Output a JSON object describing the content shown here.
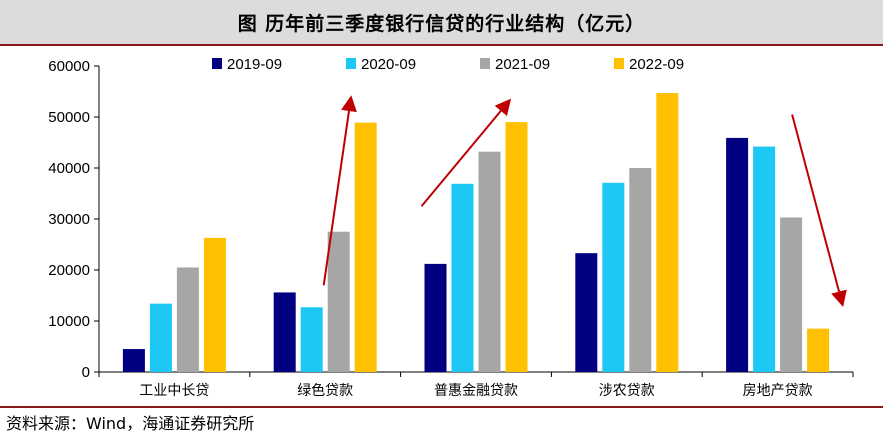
{
  "header": {
    "title": "图  历年前三季度银行信贷的行业结构（亿元）"
  },
  "source": {
    "text": "资料来源：Wind，海通证券研究所"
  },
  "chart_data": {
    "type": "bar",
    "title": "历年前三季度银行信贷的行业结构（亿元）",
    "xlabel": "",
    "ylabel": "",
    "ylim": [
      0,
      60000
    ],
    "yticks": [
      0,
      10000,
      20000,
      30000,
      40000,
      50000,
      60000
    ],
    "legend_position": "top",
    "grid": false,
    "categories": [
      "工业中长贷",
      "绿色贷款",
      "普惠金融贷款",
      "涉农贷款",
      "房地产贷款"
    ],
    "series": [
      {
        "name": "2019-09",
        "color": "#000080",
        "values": [
          4500,
          15600,
          21200,
          23300,
          45900
        ]
      },
      {
        "name": "2020-09",
        "color": "#1ec8f5",
        "values": [
          13400,
          12700,
          36900,
          37100,
          44200
        ]
      },
      {
        "name": "2021-09",
        "color": "#a6a6a6",
        "values": [
          20500,
          27500,
          43200,
          40000,
          30300
        ]
      },
      {
        "name": "2022-09",
        "color": "#ffc000",
        "values": [
          26300,
          48900,
          49000,
          54700,
          8500
        ]
      }
    ],
    "annotations": [
      {
        "type": "arrow",
        "direction": "up",
        "category": "绿色贷款",
        "from_value": 17000,
        "to_value": 53500,
        "color": "#c00000"
      },
      {
        "type": "arrow",
        "direction": "up",
        "category": "普惠金融贷款",
        "from_value": 32500,
        "to_value": 53000,
        "color": "#c00000"
      },
      {
        "type": "arrow",
        "direction": "down",
        "category": "房地产贷款",
        "from_value": 50500,
        "to_value": 13500,
        "color": "#c00000"
      }
    ]
  }
}
